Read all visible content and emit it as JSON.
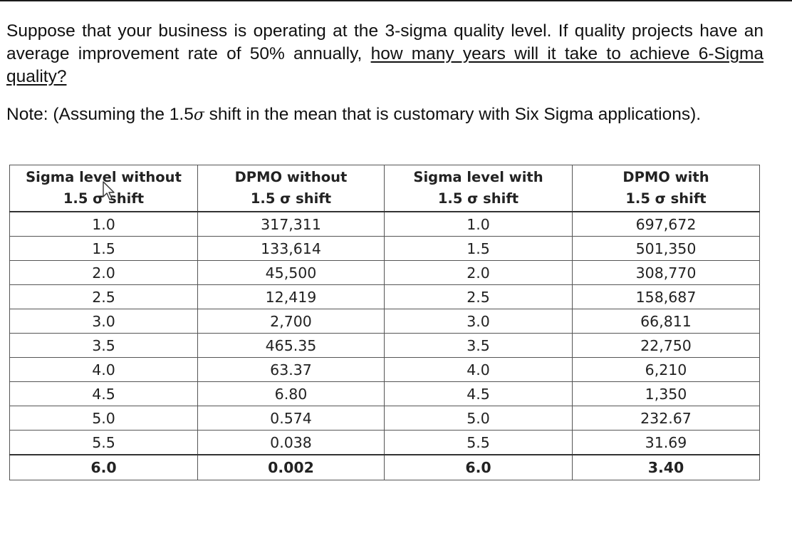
{
  "question": {
    "text_plain": "Suppose that your business is operating at the 3-sigma quality level. If quality projects have an average improvement rate of 50% annually, ",
    "text_underlined": "how many years will it take to achieve 6-Sigma quality?"
  },
  "note": {
    "prefix": "Note: (Assuming the 1.5",
    "symbol": "σ",
    "suffix": " shift in the mean that is customary with Six Sigma applications)."
  },
  "table": {
    "headers": [
      {
        "line1": "Sigma level without",
        "line2": "1.5 σ shift"
      },
      {
        "line1": "DPMO without",
        "line2": "1.5 σ shift"
      },
      {
        "line1": "Sigma level with",
        "line2": "1.5 σ shift"
      },
      {
        "line1": "DPMO with",
        "line2": "1.5 σ shift"
      }
    ],
    "rows": [
      [
        "1.0",
        "317,311",
        "1.0",
        "697,672"
      ],
      [
        "1.5",
        "133,614",
        "1.5",
        "501,350"
      ],
      [
        "2.0",
        "45,500",
        "2.0",
        "308,770"
      ],
      [
        "2.5",
        "12,419",
        "2.5",
        "158,687"
      ],
      [
        "3.0",
        "2,700",
        "3.0",
        "66,811"
      ],
      [
        "3.5",
        "465.35",
        "3.5",
        "22,750"
      ],
      [
        "4.0",
        "63.37",
        "4.0",
        "6,210"
      ],
      [
        "4.5",
        "6.80",
        "4.5",
        "1,350"
      ],
      [
        "5.0",
        "0.574",
        "5.0",
        "232.67"
      ],
      [
        "5.5",
        "0.038",
        "5.5",
        "31.69"
      ],
      [
        "6.0",
        "0.002",
        "6.0",
        "3.40"
      ]
    ]
  },
  "icons": {
    "cursor": "mouse-pointer-icon"
  }
}
